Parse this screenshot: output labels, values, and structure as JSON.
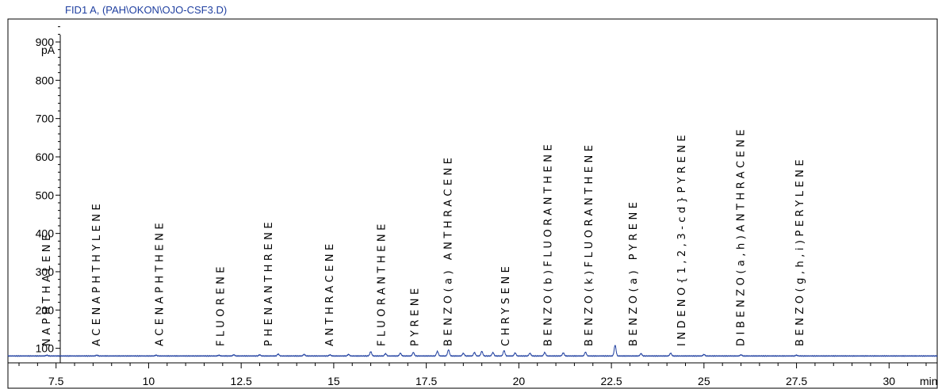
{
  "chart_data": {
    "type": "line",
    "title": "FID1 A,  (PAH\\OKON\\OJO-CSF3.D)",
    "ylabel": "pA",
    "xlabel": "min",
    "xlim": [
      6.2,
      31.3
    ],
    "ylim": [
      62,
      960
    ],
    "x_ticks": [
      7.5,
      10,
      12.5,
      15,
      17.5,
      20,
      22.5,
      25,
      27.5,
      30
    ],
    "y_ticks": [
      100,
      200,
      300,
      400,
      500,
      600,
      700,
      800,
      900
    ],
    "x_tick_labels": [
      "7.5",
      "10",
      "12.5",
      "15",
      "17.5",
      "20",
      "22.5",
      "25",
      "27.5",
      "30"
    ],
    "y_tick_labels": [
      "100",
      "200",
      "300",
      "400",
      "500",
      "600",
      "700",
      "800",
      "900"
    ],
    "line_color": "#1f3fa0",
    "baseline": 80,
    "peaks": [
      {
        "x": 7.25,
        "h": 2
      },
      {
        "x": 8.6,
        "h": 2
      },
      {
        "x": 10.2,
        "h": 2
      },
      {
        "x": 11.9,
        "h": 2
      },
      {
        "x": 12.3,
        "h": 3
      },
      {
        "x": 13.0,
        "h": 3
      },
      {
        "x": 13.5,
        "h": 5
      },
      {
        "x": 14.2,
        "h": 4
      },
      {
        "x": 14.9,
        "h": 3
      },
      {
        "x": 15.4,
        "h": 4
      },
      {
        "x": 16.0,
        "h": 11
      },
      {
        "x": 16.4,
        "h": 6
      },
      {
        "x": 16.8,
        "h": 7
      },
      {
        "x": 17.15,
        "h": 9
      },
      {
        "x": 17.8,
        "h": 12
      },
      {
        "x": 18.1,
        "h": 16
      },
      {
        "x": 18.5,
        "h": 7
      },
      {
        "x": 18.8,
        "h": 9
      },
      {
        "x": 19.0,
        "h": 12
      },
      {
        "x": 19.3,
        "h": 9
      },
      {
        "x": 19.6,
        "h": 14
      },
      {
        "x": 19.9,
        "h": 8
      },
      {
        "x": 20.3,
        "h": 7
      },
      {
        "x": 20.7,
        "h": 9
      },
      {
        "x": 21.2,
        "h": 8
      },
      {
        "x": 21.8,
        "h": 10
      },
      {
        "x": 22.6,
        "h": 28
      },
      {
        "x": 23.3,
        "h": 6
      },
      {
        "x": 24.1,
        "h": 7
      },
      {
        "x": 25.0,
        "h": 4
      },
      {
        "x": 26.0,
        "h": 3
      },
      {
        "x": 27.5,
        "h": 2
      }
    ],
    "annotations": [
      {
        "text": "NAPHTHALENE",
        "x": 7.25
      },
      {
        "text": "ACENAPHTHYLENE",
        "x": 8.6
      },
      {
        "text": "ACENAPHTHENE",
        "x": 10.3
      },
      {
        "text": "FLUORENE",
        "x": 11.95
      },
      {
        "text": "PHENANTHRENE",
        "x": 13.25
      },
      {
        "text": "ANTHRACENE",
        "x": 14.9
      },
      {
        "text": "FLUORANTHENE",
        "x": 16.3
      },
      {
        "text": "PYRENE",
        "x": 17.2
      },
      {
        "text": "BENZO(a) ANTHRACENE",
        "x": 18.1
      },
      {
        "text": "CHRYSENE",
        "x": 19.65
      },
      {
        "text": "BENZO(b)FLUORANTHENE",
        "x": 20.8
      },
      {
        "text": "BENZO(k)FLUORANTHENE",
        "x": 21.9
      },
      {
        "text": "BENZO(a) PYRENE",
        "x": 23.1
      },
      {
        "text": "INDENO{1,2,3-cd}PYRENE",
        "x": 24.4
      },
      {
        "text": "DIBENZO(a,h)ANTHRACENE",
        "x": 26.0
      },
      {
        "text": "BENZO(g,h,i)PERYLENE",
        "x": 27.6
      }
    ]
  }
}
